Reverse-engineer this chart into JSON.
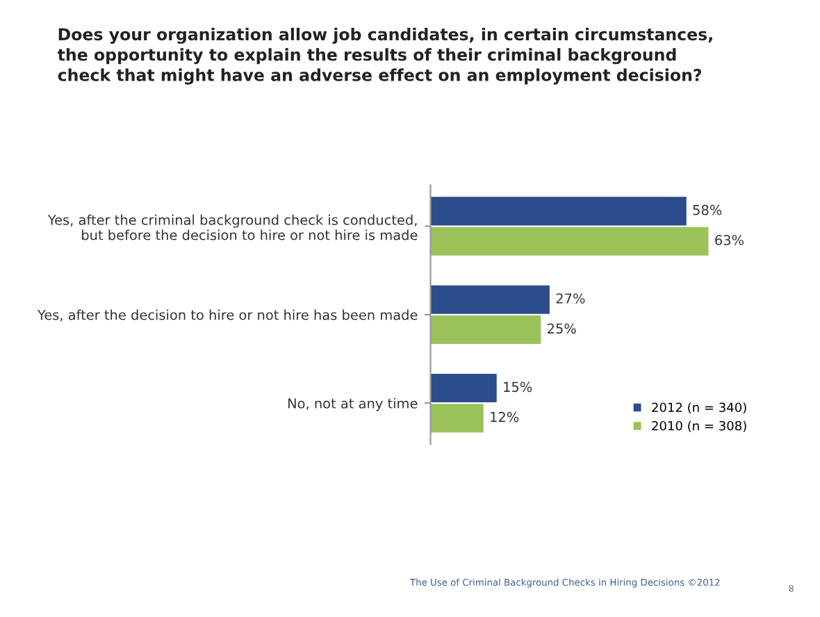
{
  "chart_data": {
    "type": "bar",
    "orientation": "horizontal",
    "title": "Does your organization allow job candidates, in certain circumstances,\nthe opportunity to explain the results of their criminal background\ncheck that might have an adverse effect on an employment decision?",
    "categories": [
      "Yes, after the criminal background check is conducted,\nbut before the decision to hire or not hire is made",
      "Yes, after the decision to hire or not hire has been made",
      "No, not at any time"
    ],
    "series": [
      {
        "name": "2012 (n = 340)",
        "color": "#2b4d8c",
        "values": [
          58,
          27,
          15
        ],
        "value_labels": [
          "58%",
          "27%",
          "15%"
        ]
      },
      {
        "name": "2010 (n = 308)",
        "color": "#9bc35a",
        "values": [
          63,
          25,
          12
        ],
        "value_labels": [
          "63%",
          "25%",
          "12%"
        ]
      }
    ],
    "legend": "bottom right",
    "grid": false,
    "annotations": [
      "The Use of Criminal Background Checks in Hiring Decisions ©2012",
      "8"
    ]
  }
}
